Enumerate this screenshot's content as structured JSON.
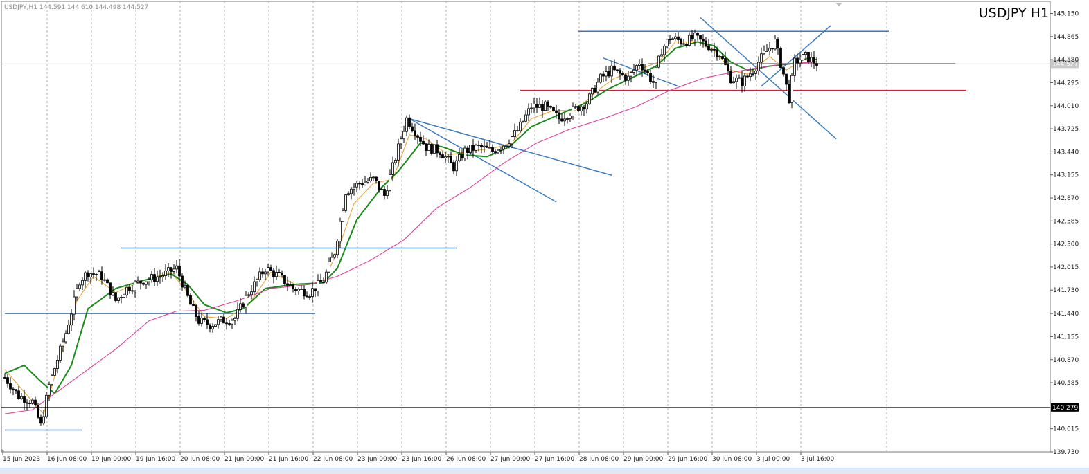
{
  "header": {
    "info": "USDJPY,H1  144.591 144.610 144.498 144.527",
    "title": "USDJPY H1"
  },
  "chart_data": {
    "type": "candlestick",
    "symbol": "USDJPY",
    "timeframe": "H1",
    "ohlc_last": {
      "open": 144.591,
      "high": 144.61,
      "low": 144.498,
      "close": 144.527
    },
    "ylim": [
      139.73,
      145.3
    ],
    "y_ticks": [
      "145.150",
      "144.865",
      "144.580",
      "144.295",
      "144.010",
      "143.725",
      "143.440",
      "143.155",
      "142.870",
      "142.585",
      "142.300",
      "142.015",
      "141.730",
      "141.440",
      "141.155",
      "140.870",
      "140.585",
      "140.015",
      "139.730"
    ],
    "x_ticks": [
      "15 Jun 2023",
      "16 Jun 08:00",
      "19 Jun 00:00",
      "19 Jun 16:00",
      "20 Jun 08:00",
      "21 Jun 00:00",
      "21 Jun 16:00",
      "22 Jun 08:00",
      "23 Jun 00:00",
      "23 Jun 16:00",
      "26 Jun 08:00",
      "27 Jun 00:00",
      "27 Jun 16:00",
      "28 Jun 08:00",
      "29 Jun 00:00",
      "29 Jun 16:00",
      "30 Jun 08:00",
      "3 Jul 00:00",
      "3 Jul 16:00"
    ],
    "n_bars": 294,
    "bar_step_px": 4,
    "close_path": [
      [
        0,
        140.65
      ],
      [
        5,
        140.42
      ],
      [
        10,
        140.35
      ],
      [
        13,
        140.05
      ],
      [
        16,
        140.55
      ],
      [
        22,
        141.2
      ],
      [
        27,
        141.85
      ],
      [
        30,
        141.95
      ],
      [
        35,
        141.9
      ],
      [
        40,
        141.6
      ],
      [
        44,
        141.75
      ],
      [
        50,
        141.85
      ],
      [
        56,
        141.9
      ],
      [
        62,
        142.0
      ],
      [
        67,
        141.55
      ],
      [
        70,
        141.35
      ],
      [
        74,
        141.3
      ],
      [
        78,
        141.35
      ],
      [
        83,
        141.38
      ],
      [
        88,
        141.7
      ],
      [
        94,
        142.0
      ],
      [
        99,
        141.9
      ],
      [
        104,
        141.75
      ],
      [
        110,
        141.7
      ],
      [
        115,
        141.85
      ],
      [
        119,
        142.2
      ],
      [
        123,
        142.95
      ],
      [
        128,
        143.05
      ],
      [
        133,
        143.1
      ],
      [
        137,
        142.9
      ],
      [
        140,
        143.25
      ],
      [
        145,
        143.85
      ],
      [
        148,
        143.7
      ],
      [
        152,
        143.5
      ],
      [
        157,
        143.45
      ],
      [
        162,
        143.25
      ],
      [
        166,
        143.45
      ],
      [
        171,
        143.5
      ],
      [
        176,
        143.45
      ],
      [
        181,
        143.55
      ],
      [
        185,
        143.7
      ],
      [
        190,
        144.0
      ],
      [
        195,
        144.0
      ],
      [
        200,
        143.85
      ],
      [
        205,
        143.95
      ],
      [
        210,
        144.05
      ],
      [
        215,
        144.35
      ],
      [
        219,
        144.45
      ],
      [
        225,
        144.35
      ],
      [
        229,
        144.55
      ],
      [
        234,
        144.3
      ],
      [
        237,
        144.7
      ],
      [
        240,
        144.85
      ],
      [
        245,
        144.8
      ],
      [
        249,
        144.85
      ],
      [
        254,
        144.75
      ],
      [
        258,
        144.65
      ],
      [
        262,
        144.35
      ],
      [
        266,
        144.3
      ],
      [
        270,
        144.45
      ],
      [
        274,
        144.65
      ],
      [
        278,
        144.8
      ],
      [
        281,
        144.4
      ],
      [
        283,
        144.1
      ],
      [
        285,
        144.55
      ],
      [
        289,
        144.62
      ],
      [
        293,
        144.53
      ]
    ],
    "series": [
      {
        "name": "",
        "color": "#e8a33a",
        "values": [
          [
            0,
            140.75
          ],
          [
            10,
            140.35
          ],
          [
            14,
            140.2
          ],
          [
            20,
            140.9
          ],
          [
            26,
            141.6
          ],
          [
            32,
            141.9
          ],
          [
            40,
            141.7
          ],
          [
            50,
            141.85
          ],
          [
            60,
            141.95
          ],
          [
            66,
            141.7
          ],
          [
            72,
            141.4
          ],
          [
            80,
            141.38
          ],
          [
            88,
            141.55
          ],
          [
            96,
            141.95
          ],
          [
            105,
            141.8
          ],
          [
            115,
            141.82
          ],
          [
            121,
            142.3
          ],
          [
            126,
            142.8
          ],
          [
            133,
            143.05
          ],
          [
            140,
            143.1
          ],
          [
            146,
            143.65
          ],
          [
            152,
            143.6
          ],
          [
            160,
            143.4
          ],
          [
            168,
            143.45
          ],
          [
            176,
            143.48
          ],
          [
            183,
            143.55
          ],
          [
            190,
            143.85
          ],
          [
            198,
            143.95
          ],
          [
            206,
            143.95
          ],
          [
            214,
            144.2
          ],
          [
            220,
            144.35
          ],
          [
            228,
            144.45
          ],
          [
            236,
            144.55
          ],
          [
            242,
            144.8
          ],
          [
            250,
            144.8
          ],
          [
            256,
            144.7
          ],
          [
            262,
            144.45
          ],
          [
            268,
            144.4
          ],
          [
            276,
            144.62
          ],
          [
            282,
            144.45
          ],
          [
            288,
            144.58
          ],
          [
            293,
            144.56
          ]
        ]
      },
      {
        "name": "",
        "color": "#1a8a1a",
        "values": [
          [
            0,
            140.7
          ],
          [
            7,
            140.8
          ],
          [
            13,
            140.6
          ],
          [
            18,
            140.45
          ],
          [
            24,
            140.8
          ],
          [
            30,
            141.5
          ],
          [
            40,
            141.75
          ],
          [
            50,
            141.85
          ],
          [
            60,
            141.93
          ],
          [
            66,
            141.8
          ],
          [
            72,
            141.55
          ],
          [
            80,
            141.45
          ],
          [
            86,
            141.5
          ],
          [
            94,
            141.75
          ],
          [
            104,
            141.8
          ],
          [
            115,
            141.82
          ],
          [
            120,
            142.0
          ],
          [
            127,
            142.6
          ],
          [
            136,
            143.0
          ],
          [
            142,
            143.2
          ],
          [
            150,
            143.55
          ],
          [
            158,
            143.5
          ],
          [
            166,
            143.4
          ],
          [
            174,
            143.38
          ],
          [
            182,
            143.5
          ],
          [
            190,
            143.75
          ],
          [
            200,
            143.9
          ],
          [
            210,
            144.05
          ],
          [
            218,
            144.22
          ],
          [
            226,
            144.35
          ],
          [
            235,
            144.5
          ],
          [
            242,
            144.72
          ],
          [
            250,
            144.8
          ],
          [
            256,
            144.75
          ],
          [
            262,
            144.55
          ],
          [
            268,
            144.45
          ],
          [
            276,
            144.5
          ],
          [
            284,
            144.53
          ],
          [
            290,
            144.6
          ],
          [
            293,
            144.58
          ]
        ]
      },
      {
        "name": "",
        "color": "#e0409a",
        "values": [
          [
            0,
            140.2
          ],
          [
            10,
            140.25
          ],
          [
            20,
            140.5
          ],
          [
            30,
            140.75
          ],
          [
            40,
            141.0
          ],
          [
            52,
            141.35
          ],
          [
            62,
            141.47
          ],
          [
            72,
            141.48
          ],
          [
            84,
            141.6
          ],
          [
            96,
            141.75
          ],
          [
            110,
            141.8
          ],
          [
            120,
            141.9
          ],
          [
            132,
            142.1
          ],
          [
            144,
            142.35
          ],
          [
            156,
            142.75
          ],
          [
            168,
            143.0
          ],
          [
            180,
            143.3
          ],
          [
            192,
            143.55
          ],
          [
            204,
            143.72
          ],
          [
            216,
            143.85
          ],
          [
            228,
            144.0
          ],
          [
            240,
            144.2
          ],
          [
            252,
            144.35
          ],
          [
            262,
            144.42
          ],
          [
            272,
            144.48
          ],
          [
            282,
            144.53
          ],
          [
            293,
            144.55
          ]
        ]
      }
    ],
    "hlines": [
      {
        "price": 140.279,
        "color": "#000000",
        "label": "140.279"
      },
      {
        "price": 144.527,
        "color": "#b0b0b0",
        "label": "144.527"
      }
    ],
    "trendlines": [
      {
        "color": "#3a7bbf",
        "from": [
          0,
          141.44
        ],
        "to": [
          112,
          141.44
        ]
      },
      {
        "color": "#3a7bbf",
        "from": [
          0,
          140.0
        ],
        "to": [
          28,
          140.0
        ]
      },
      {
        "color": "#3a7bbf",
        "from": [
          42,
          142.25
        ],
        "to": [
          163,
          142.25
        ]
      },
      {
        "color": "#3a7bbf",
        "from": [
          146,
          143.85
        ],
        "to": [
          219,
          143.15
        ]
      },
      {
        "color": "#3a7bbf",
        "from": [
          146,
          143.85
        ],
        "to": [
          199,
          142.82
        ]
      },
      {
        "color": "#3a7bbf",
        "from": [
          207,
          144.93
        ],
        "to": [
          319,
          144.93
        ]
      },
      {
        "color": "#3a7bbf",
        "from": [
          216,
          144.6
        ],
        "to": [
          243,
          144.25
        ]
      },
      {
        "color": "#3a7bbf",
        "from": [
          251,
          145.1
        ],
        "to": [
          300,
          143.6
        ]
      },
      {
        "color": "#3a7bbf",
        "from": [
          273,
          144.25
        ],
        "to": [
          298,
          145.0
        ]
      },
      {
        "color": "#3a7bbf",
        "from": [
          232,
          144.53
        ],
        "to": [
          343,
          144.53
        ]
      },
      {
        "color": "#d0203a",
        "from": [
          186,
          144.2
        ],
        "to": [
          347,
          144.2
        ]
      }
    ]
  }
}
